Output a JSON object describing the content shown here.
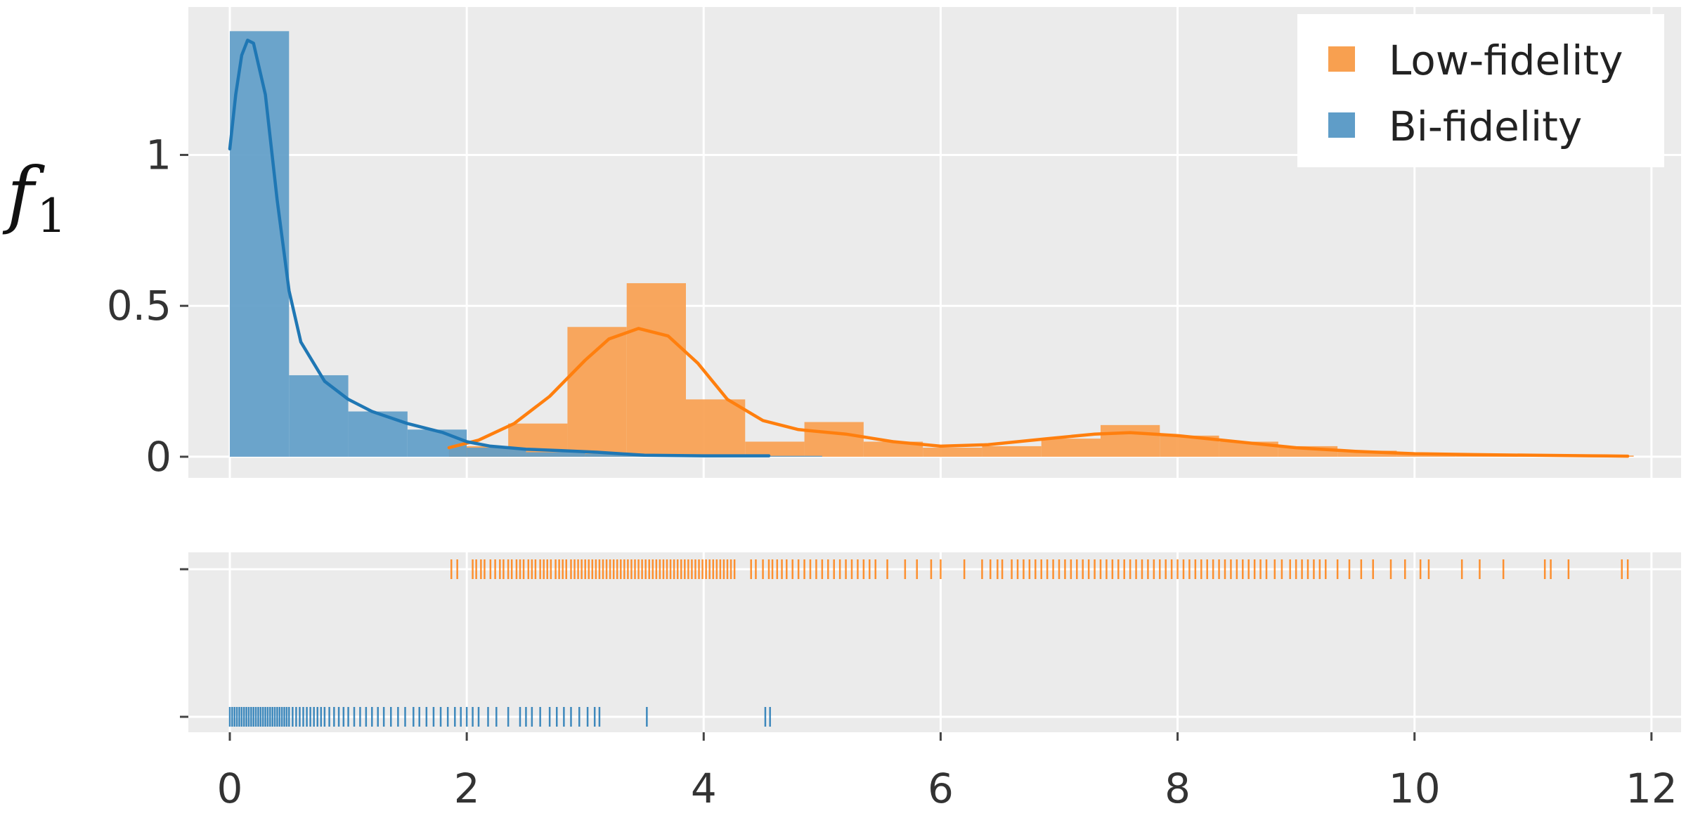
{
  "chart_data": {
    "type": "histogram",
    "ylabel": "f",
    "ylabel_subscript": "1",
    "xlim": [
      -0.35,
      12.25
    ],
    "ylim": [
      -0.07,
      1.49
    ],
    "xticks": [
      0,
      2,
      4,
      6,
      8,
      10,
      12
    ],
    "yticks": [
      0,
      0.5,
      1
    ],
    "ytick_labels": [
      "0",
      "0.5",
      "1"
    ],
    "grid": true,
    "legend_position": "top-right",
    "colors": {
      "low_fidelity_bar": "#f8a050",
      "low_fidelity_line": "#ff7f0e",
      "bi_fidelity_bar": "#5f9dc8",
      "bi_fidelity_line": "#1f77b4"
    },
    "series": [
      {
        "name": "Low-fidelity",
        "bins": [
          {
            "x0": 1.85,
            "x1": 2.35,
            "height": 0.035
          },
          {
            "x0": 2.35,
            "x1": 2.85,
            "height": 0.11
          },
          {
            "x0": 2.85,
            "x1": 3.35,
            "height": 0.43
          },
          {
            "x0": 3.35,
            "x1": 3.85,
            "height": 0.575
          },
          {
            "x0": 3.85,
            "x1": 4.35,
            "height": 0.19
          },
          {
            "x0": 4.35,
            "x1": 4.85,
            "height": 0.05
          },
          {
            "x0": 4.85,
            "x1": 5.35,
            "height": 0.115
          },
          {
            "x0": 5.35,
            "x1": 5.85,
            "height": 0.05
          },
          {
            "x0": 5.85,
            "x1": 6.35,
            "height": 0.03
          },
          {
            "x0": 6.35,
            "x1": 6.85,
            "height": 0.035
          },
          {
            "x0": 6.85,
            "x1": 7.35,
            "height": 0.06
          },
          {
            "x0": 7.35,
            "x1": 7.85,
            "height": 0.105
          },
          {
            "x0": 7.85,
            "x1": 8.35,
            "height": 0.07
          },
          {
            "x0": 8.35,
            "x1": 8.85,
            "height": 0.05
          },
          {
            "x0": 8.85,
            "x1": 9.35,
            "height": 0.035
          },
          {
            "x0": 9.35,
            "x1": 9.85,
            "height": 0.02
          },
          {
            "x0": 9.85,
            "x1": 10.35,
            "height": 0.01
          },
          {
            "x0": 10.35,
            "x1": 10.85,
            "height": 0.008
          },
          {
            "x0": 10.85,
            "x1": 11.35,
            "height": 0.005
          },
          {
            "x0": 11.35,
            "x1": 11.85,
            "height": 0.004
          }
        ],
        "kde": [
          [
            1.85,
            0.03
          ],
          [
            2.1,
            0.055
          ],
          [
            2.4,
            0.11
          ],
          [
            2.7,
            0.2
          ],
          [
            3.0,
            0.32
          ],
          [
            3.2,
            0.39
          ],
          [
            3.45,
            0.425
          ],
          [
            3.7,
            0.4
          ],
          [
            3.95,
            0.31
          ],
          [
            4.2,
            0.19
          ],
          [
            4.5,
            0.12
          ],
          [
            4.8,
            0.09
          ],
          [
            5.2,
            0.075
          ],
          [
            5.6,
            0.05
          ],
          [
            6.0,
            0.035
          ],
          [
            6.4,
            0.04
          ],
          [
            6.9,
            0.06
          ],
          [
            7.3,
            0.075
          ],
          [
            7.6,
            0.08
          ],
          [
            8.0,
            0.07
          ],
          [
            8.5,
            0.05
          ],
          [
            9.0,
            0.03
          ],
          [
            9.5,
            0.018
          ],
          [
            10.0,
            0.01
          ],
          [
            10.5,
            0.007
          ],
          [
            11.0,
            0.005
          ],
          [
            11.5,
            0.003
          ],
          [
            11.8,
            0.002
          ]
        ],
        "rug": [
          1.87,
          1.92,
          2.05,
          2.08,
          2.12,
          2.15,
          2.2,
          2.24,
          2.28,
          2.31,
          2.35,
          2.38,
          2.42,
          2.45,
          2.48,
          2.52,
          2.55,
          2.58,
          2.62,
          2.65,
          2.68,
          2.71,
          2.75,
          2.78,
          2.81,
          2.84,
          2.88,
          2.91,
          2.94,
          2.97,
          3.0,
          3.03,
          3.06,
          3.09,
          3.12,
          3.15,
          3.18,
          3.21,
          3.24,
          3.27,
          3.3,
          3.33,
          3.36,
          3.39,
          3.42,
          3.45,
          3.48,
          3.51,
          3.54,
          3.57,
          3.6,
          3.63,
          3.66,
          3.69,
          3.72,
          3.75,
          3.78,
          3.81,
          3.84,
          3.87,
          3.9,
          3.93,
          3.96,
          3.99,
          4.02,
          4.05,
          4.08,
          4.11,
          4.14,
          4.17,
          4.2,
          4.23,
          4.26,
          4.4,
          4.44,
          4.5,
          4.55,
          4.58,
          4.62,
          4.66,
          4.7,
          4.75,
          4.8,
          4.85,
          4.9,
          4.95,
          5.0,
          5.05,
          5.1,
          5.15,
          5.2,
          5.25,
          5.3,
          5.35,
          5.4,
          5.45,
          5.55,
          5.7,
          5.8,
          5.92,
          6.0,
          6.2,
          6.35,
          6.42,
          6.48,
          6.52,
          6.6,
          6.65,
          6.7,
          6.75,
          6.8,
          6.85,
          6.9,
          6.95,
          7.0,
          7.05,
          7.1,
          7.15,
          7.2,
          7.25,
          7.3,
          7.35,
          7.4,
          7.45,
          7.5,
          7.55,
          7.6,
          7.65,
          7.7,
          7.75,
          7.8,
          7.85,
          7.9,
          7.95,
          8.0,
          8.05,
          8.1,
          8.15,
          8.2,
          8.25,
          8.3,
          8.35,
          8.4,
          8.45,
          8.5,
          8.55,
          8.6,
          8.65,
          8.7,
          8.75,
          8.82,
          8.88,
          8.95,
          9.0,
          9.05,
          9.1,
          9.15,
          9.2,
          9.25,
          9.35,
          9.45,
          9.55,
          9.65,
          9.8,
          9.92,
          10.05,
          10.12,
          10.4,
          10.55,
          10.75,
          11.1,
          11.15,
          11.3,
          11.75,
          11.8
        ]
      },
      {
        "name": "Bi-fidelity",
        "bins": [
          {
            "x0": 0.0,
            "x1": 0.5,
            "height": 1.41
          },
          {
            "x0": 0.5,
            "x1": 1.0,
            "height": 0.27
          },
          {
            "x0": 1.0,
            "x1": 1.5,
            "height": 0.15
          },
          {
            "x0": 1.5,
            "x1": 2.0,
            "height": 0.09
          },
          {
            "x0": 2.0,
            "x1": 2.5,
            "height": 0.03
          },
          {
            "x0": 2.5,
            "x1": 3.0,
            "height": 0.015
          },
          {
            "x0": 3.0,
            "x1": 3.5,
            "height": 0.01
          },
          {
            "x0": 3.5,
            "x1": 4.0,
            "height": 0.005
          },
          {
            "x0": 4.0,
            "x1": 4.5,
            "height": 0.003
          },
          {
            "x0": 4.5,
            "x1": 5.0,
            "height": 0.003
          }
        ],
        "kde": [
          [
            0.0,
            1.02
          ],
          [
            0.05,
            1.2
          ],
          [
            0.1,
            1.33
          ],
          [
            0.15,
            1.38
          ],
          [
            0.2,
            1.37
          ],
          [
            0.3,
            1.2
          ],
          [
            0.4,
            0.85
          ],
          [
            0.5,
            0.55
          ],
          [
            0.6,
            0.38
          ],
          [
            0.8,
            0.25
          ],
          [
            1.0,
            0.19
          ],
          [
            1.2,
            0.15
          ],
          [
            1.5,
            0.11
          ],
          [
            1.8,
            0.08
          ],
          [
            2.0,
            0.05
          ],
          [
            2.2,
            0.035
          ],
          [
            2.5,
            0.025
          ],
          [
            2.8,
            0.02
          ],
          [
            3.1,
            0.015
          ],
          [
            3.5,
            0.005
          ],
          [
            4.0,
            0.003
          ],
          [
            4.55,
            0.003
          ]
        ],
        "rug": [
          0.0,
          0.02,
          0.04,
          0.06,
          0.08,
          0.1,
          0.12,
          0.14,
          0.16,
          0.18,
          0.2,
          0.22,
          0.24,
          0.26,
          0.28,
          0.3,
          0.32,
          0.34,
          0.36,
          0.38,
          0.4,
          0.42,
          0.44,
          0.46,
          0.48,
          0.5,
          0.53,
          0.56,
          0.59,
          0.62,
          0.65,
          0.68,
          0.71,
          0.74,
          0.77,
          0.8,
          0.84,
          0.88,
          0.92,
          0.96,
          1.0,
          1.05,
          1.1,
          1.15,
          1.2,
          1.25,
          1.3,
          1.36,
          1.42,
          1.48,
          1.55,
          1.6,
          1.66,
          1.72,
          1.78,
          1.84,
          1.9,
          1.95,
          2.0,
          2.05,
          2.1,
          2.18,
          2.25,
          2.35,
          2.45,
          2.5,
          2.55,
          2.62,
          2.7,
          2.76,
          2.82,
          2.88,
          2.95,
          3.02,
          3.08,
          3.12,
          3.52,
          4.52,
          4.56
        ]
      }
    ],
    "legend": [
      {
        "label": "Low-fidelity",
        "color": "#f8a050"
      },
      {
        "label": "Bi-fidelity",
        "color": "#5f9dc8"
      }
    ]
  }
}
